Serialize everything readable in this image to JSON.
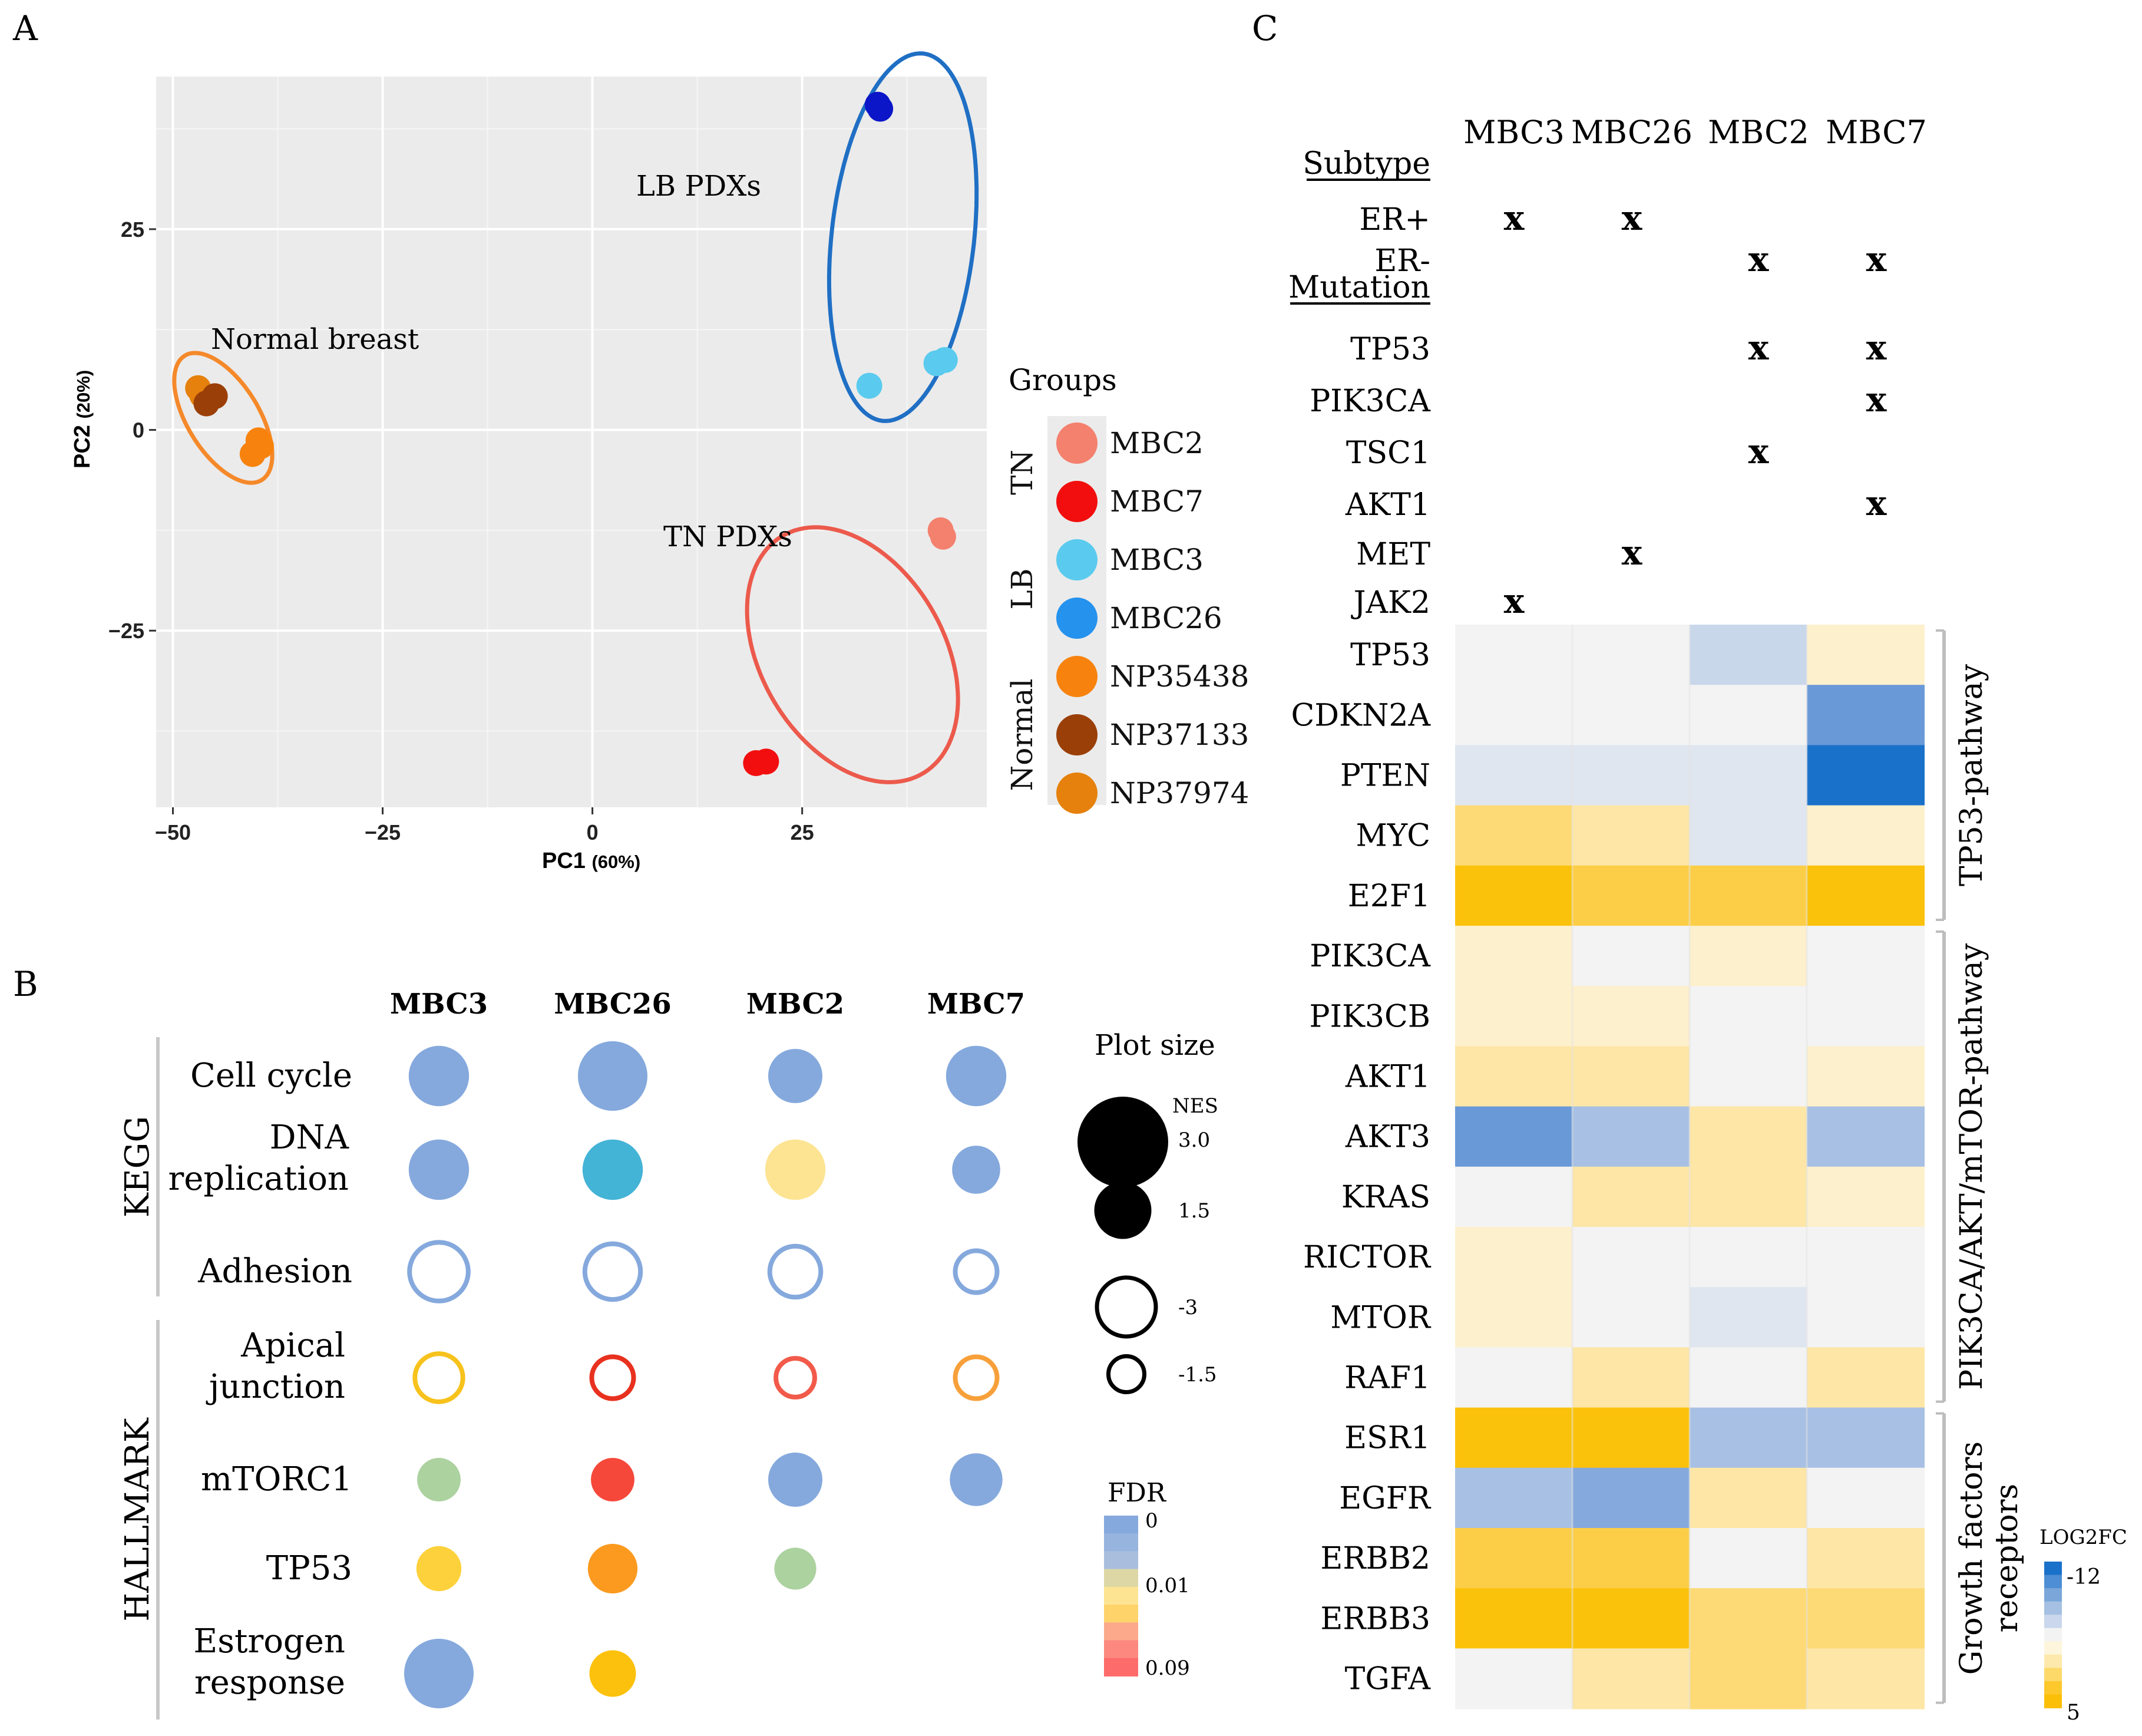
{
  "panel_labels": {
    "a": "A",
    "b": "B",
    "c": "C"
  },
  "chart_data": [
    {
      "type": "scatter",
      "panel": "A",
      "xlabel": "PC1",
      "xlabel_pct": "(60%)",
      "ylabel": "PC2",
      "ylabel_pct": "(20%)",
      "xlim": [
        -52,
        47
      ],
      "ylim": [
        -47,
        44
      ],
      "xticks": [
        -50,
        -25,
        0,
        25
      ],
      "xtick_labels": [
        "−50",
        "−25",
        "0",
        "25"
      ],
      "yticks": [
        25,
        0,
        -25
      ],
      "ytick_labels": [
        "25",
        "0",
        "−25"
      ],
      "cluster_labels": {
        "lb": "LB PDXs",
        "normal": "Normal breast",
        "tn": "TN PDXs"
      },
      "ellipses": [
        {
          "name": "LB PDXs",
          "color": "#1f6fc4",
          "cx": 37,
          "cy": 24,
          "rx": 23,
          "ry": 8.5,
          "angle": 84
        },
        {
          "name": "Normal breast",
          "color": "#f5892a",
          "cx": -44,
          "cy": 1.5,
          "rx": 9,
          "ry": 4.3,
          "angle": -60
        },
        {
          "name": "TN PDXs",
          "color": "#ec5a4c",
          "cx": 31,
          "cy": -28,
          "rx": 17,
          "ry": 11,
          "angle": -62
        }
      ],
      "points": [
        {
          "group": "MBC26",
          "x": 34,
          "y": 40.5
        },
        {
          "group": "MBC26",
          "x": 34.3,
          "y": 40
        },
        {
          "group": "MBC3",
          "x": 33,
          "y": 5.5
        },
        {
          "group": "MBC3",
          "x": 41,
          "y": 8.3
        },
        {
          "group": "MBC3",
          "x": 42,
          "y": 8.7
        },
        {
          "group": "MBC2",
          "x": 41.5,
          "y": -12.5
        },
        {
          "group": "MBC2",
          "x": 41.8,
          "y": -13.3
        },
        {
          "group": "MBC7",
          "x": 19.5,
          "y": -41.5
        },
        {
          "group": "MBC7",
          "x": 20.7,
          "y": -41.3
        },
        {
          "group": "NP37974",
          "x": -47,
          "y": 5.2
        },
        {
          "group": "NP37974",
          "x": -46.5,
          "y": 4.3
        },
        {
          "group": "NP37133",
          "x": -45,
          "y": 4.2
        },
        {
          "group": "NP37133",
          "x": -46,
          "y": 3.3
        },
        {
          "group": "NP35438",
          "x": -39.5,
          "y": -2.0
        },
        {
          "group": "NP35438",
          "x": -40.5,
          "y": -3.0
        },
        {
          "group": "NP35438",
          "x": -39.8,
          "y": -1.3
        }
      ],
      "legend": {
        "title": "Groups",
        "sections": [
          {
            "label": "TN",
            "items": [
              {
                "name": "MBC2",
                "color": "#f4806e"
              },
              {
                "name": "MBC7",
                "color": "#f20e0e"
              }
            ]
          },
          {
            "label": "LB",
            "items": [
              {
                "name": "MBC3",
                "color": "#5acbee"
              },
              {
                "name": "MBC26",
                "color": "#2592ee"
              }
            ]
          },
          {
            "label": "Normal",
            "items": [
              {
                "name": "NP35438",
                "color": "#f7830e"
              },
              {
                "name": "NP37133",
                "color": "#9b3f08"
              },
              {
                "name": "NP37974",
                "color": "#e5810c"
              }
            ]
          }
        ]
      },
      "group_colors": {
        "MBC2": "#f4806e",
        "MBC7": "#f20e0e",
        "MBC3": "#5acbee",
        "MBC26": "#2592ee",
        "NP35438": "#f7830e",
        "NP37133": "#9b3f08",
        "NP37974": "#e5810c",
        "MBC26_dot": "#0b16c8"
      }
    },
    {
      "type": "bubble",
      "panel": "B",
      "columns": [
        "MBC3",
        "MBC26",
        "MBC2",
        "MBC7"
      ],
      "groups": [
        {
          "label": "KEGG",
          "rows": [
            "Cell cycle",
            "DNA replication",
            "Adhesion"
          ]
        },
        {
          "label": "HALLMARK",
          "rows": [
            "Apical junction",
            "mTORC1",
            "TP53",
            "Estrogen response"
          ]
        }
      ],
      "row_lines": {
        "Cell cycle": [
          "Cell cycle"
        ],
        "DNA replication": [
          "DNA",
          "replication"
        ],
        "Adhesion": [
          "Adhesion"
        ],
        "Apical junction": [
          "Apical",
          "junction"
        ],
        "mTORC1": [
          "mTORC1"
        ],
        "TP53": [
          "TP53"
        ],
        "Estrogen response": [
          "Estrogen",
          "response"
        ]
      },
      "cells": [
        {
          "row": "Cell cycle",
          "col": "MBC3",
          "nes": 2.4,
          "fdr": 0,
          "color": "#85a9dd",
          "filled": true
        },
        {
          "row": "Cell cycle",
          "col": "MBC26",
          "nes": 3.0,
          "fdr": 0,
          "color": "#85a9dd",
          "filled": true
        },
        {
          "row": "Cell cycle",
          "col": "MBC2",
          "nes": 2.0,
          "fdr": 0,
          "color": "#85a9dd",
          "filled": true
        },
        {
          "row": "Cell cycle",
          "col": "MBC7",
          "nes": 2.4,
          "fdr": 0,
          "color": "#85a9dd",
          "filled": true
        },
        {
          "row": "DNA replication",
          "col": "MBC3",
          "nes": 2.4,
          "fdr": 0,
          "color": "#85a9dd",
          "filled": true
        },
        {
          "row": "DNA replication",
          "col": "MBC26",
          "nes": 2.4,
          "fdr": 0,
          "color": "#43b3d6",
          "filled": true
        },
        {
          "row": "DNA replication",
          "col": "MBC2",
          "nes": 2.4,
          "fdr": 0.02,
          "color": "#fde492",
          "filled": true
        },
        {
          "row": "DNA replication",
          "col": "MBC7",
          "nes": 1.6,
          "fdr": 0,
          "color": "#85a9dd",
          "filled": true
        },
        {
          "row": "Adhesion",
          "col": "MBC3",
          "nes": -2.6,
          "fdr": 0,
          "color": "#85a9dd",
          "filled": false
        },
        {
          "row": "Adhesion",
          "col": "MBC26",
          "nes": -2.4,
          "fdr": 0,
          "color": "#85a9dd",
          "filled": false
        },
        {
          "row": "Adhesion",
          "col": "MBC2",
          "nes": -2.1,
          "fdr": 0,
          "color": "#85a9dd",
          "filled": false
        },
        {
          "row": "Adhesion",
          "col": "MBC7",
          "nes": -1.5,
          "fdr": 0,
          "color": "#85a9dd",
          "filled": false
        },
        {
          "row": "Apical junction",
          "col": "MBC3",
          "nes": -1.9,
          "fdr": 0.03,
          "color": "#f7c21c",
          "filled": false
        },
        {
          "row": "Apical junction",
          "col": "MBC26",
          "nes": -1.5,
          "fdr": 0.08,
          "color": "#e8311e",
          "filled": false
        },
        {
          "row": "Apical junction",
          "col": "MBC2",
          "nes": -1.3,
          "fdr": 0.07,
          "color": "#f25a4a",
          "filled": false
        },
        {
          "row": "Apical junction",
          "col": "MBC7",
          "nes": -1.5,
          "fdr": 0.05,
          "color": "#f7a03a",
          "filled": false
        },
        {
          "row": "mTORC1",
          "col": "MBC3",
          "nes": 1.3,
          "fdr": 0.01,
          "color": "#acd29f",
          "filled": true
        },
        {
          "row": "mTORC1",
          "col": "MBC26",
          "nes": 1.3,
          "fdr": 0.08,
          "color": "#f5483a",
          "filled": true
        },
        {
          "row": "mTORC1",
          "col": "MBC2",
          "nes": 2.0,
          "fdr": 0,
          "color": "#85a9dd",
          "filled": true
        },
        {
          "row": "mTORC1",
          "col": "MBC7",
          "nes": 1.9,
          "fdr": 0,
          "color": "#85a9dd",
          "filled": true
        },
        {
          "row": "TP53",
          "col": "MBC3",
          "nes": 1.4,
          "fdr": 0.03,
          "color": "#fdd13b",
          "filled": true
        },
        {
          "row": "TP53",
          "col": "MBC26",
          "nes": 1.7,
          "fdr": 0.05,
          "color": "#fb9a1f",
          "filled": true
        },
        {
          "row": "TP53",
          "col": "MBC2",
          "nes": 1.2,
          "fdr": 0.01,
          "color": "#acd29f",
          "filled": true
        },
        {
          "row": "Estrogen response",
          "col": "MBC3",
          "nes": 3.0,
          "fdr": 0,
          "color": "#85a9dd",
          "filled": true
        },
        {
          "row": "Estrogen response",
          "col": "MBC26",
          "nes": 1.5,
          "fdr": 0.03,
          "color": "#fcc10c",
          "filled": true
        }
      ],
      "size_legend": {
        "title": "Plot size",
        "subtitle": "NES",
        "entries": [
          {
            "label": "3.0",
            "nes": 3.0,
            "filled": true
          },
          {
            "label": "1.5",
            "nes": 1.5,
            "filled": true
          },
          {
            "label": "-3",
            "nes": -3,
            "filled": false
          },
          {
            "label": "-1.5",
            "nes": -1.5,
            "filled": false
          }
        ]
      },
      "fdr_legend": {
        "title": "FDR",
        "labels": [
          "0",
          "0.01",
          "0.09"
        ],
        "colors": [
          "#85a9dd",
          "#97b4de",
          "#a9bedd",
          "#ddd7a6",
          "#fde492",
          "#fdd36a",
          "#fba98a",
          "#fc8880",
          "#fd6b6b"
        ]
      }
    },
    {
      "type": "heatmap",
      "panel": "C",
      "columns": [
        "MBC3",
        "MBC26",
        "MBC2",
        "MBC7"
      ],
      "mutation_table": {
        "sections": [
          {
            "header": "Subtype",
            "rows": [
              {
                "label": "ER+",
                "marks": [
                  true,
                  true,
                  false,
                  false
                ]
              },
              {
                "label": "ER-",
                "marks": [
                  false,
                  false,
                  true,
                  true
                ]
              }
            ]
          },
          {
            "header": "Mutation",
            "rows": [
              {
                "label": "TP53",
                "marks": [
                  false,
                  false,
                  true,
                  true
                ]
              },
              {
                "label": "PIK3CA",
                "marks": [
                  false,
                  false,
                  false,
                  true
                ]
              },
              {
                "label": "TSC1",
                "marks": [
                  false,
                  false,
                  true,
                  false
                ]
              },
              {
                "label": "AKT1",
                "marks": [
                  false,
                  false,
                  false,
                  true
                ]
              },
              {
                "label": "MET",
                "marks": [
                  false,
                  true,
                  false,
                  false
                ]
              },
              {
                "label": "JAK2",
                "marks": [
                  true,
                  false,
                  false,
                  false
                ]
              }
            ]
          }
        ],
        "mark_symbol": "x"
      },
      "genes": [
        "TP53",
        "CDKN2A",
        "PTEN",
        "MYC",
        "E2F1",
        "PIK3CA",
        "PIK3CB",
        "AKT1",
        "AKT3",
        "KRAS",
        "RICTOR",
        "MTOR",
        "RAF1",
        "ESR1",
        "EGFR",
        "ERBB2",
        "ERBB3",
        "TGFA"
      ],
      "values": [
        [
          0,
          0,
          -2,
          1
        ],
        [
          0,
          0,
          0,
          -8
        ],
        [
          -1,
          -0.5,
          -0.7,
          -12
        ],
        [
          3,
          2,
          -1,
          1
        ],
        [
          5,
          3.5,
          4,
          5
        ],
        [
          0.8,
          0,
          1,
          0
        ],
        [
          1,
          1.3,
          0,
          0
        ],
        [
          1.5,
          1.5,
          0,
          1
        ],
        [
          -7,
          -4.5,
          2,
          -4
        ],
        [
          0,
          1.5,
          2,
          1
        ],
        [
          0.8,
          0,
          0,
          0
        ],
        [
          0.8,
          0,
          -0.4,
          0
        ],
        [
          0,
          1.5,
          0,
          2.3
        ],
        [
          4.5,
          5,
          -4,
          -4
        ],
        [
          -3.5,
          -6,
          1.5,
          0
        ],
        [
          4,
          3.5,
          0,
          1.5
        ],
        [
          4.5,
          4.5,
          2.5,
          2.5
        ],
        [
          0,
          1.5,
          2.5,
          2
        ]
      ],
      "pathways": [
        {
          "label": "TP53-pathway",
          "from": 0,
          "to": 4
        },
        {
          "label": "PIK3CA/AKT/mTOR-pathway",
          "from": 5,
          "to": 12
        },
        {
          "label_lines": [
            "Growth factors",
            "receptors"
          ],
          "from": 13,
          "to": 17
        }
      ],
      "scale": {
        "title": "LOG2FC",
        "min_label": "-12",
        "max_label": "5",
        "min": -12,
        "max": 5,
        "colors": [
          "#1a71c9",
          "#4d8ed4",
          "#7aa6da",
          "#a5c0e2",
          "#cad7ec",
          "#f3f3f3",
          "#fdf6dc",
          "#fde9ab",
          "#fdd96a",
          "#fcc82c",
          "#fbbf07"
        ]
      }
    }
  ]
}
